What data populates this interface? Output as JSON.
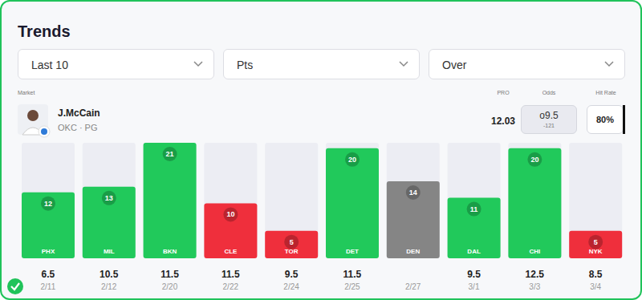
{
  "header": {
    "title": "Trends"
  },
  "filters": [
    "Last 10",
    "Pts",
    "Over"
  ],
  "columns": {
    "market": "Market",
    "pro": "PRO",
    "odds": "Odds",
    "hit_rate": "Hit Rate"
  },
  "player": {
    "name": "J.McCain",
    "subtitle": "OKC · PG",
    "pro": 12.03,
    "odds_line": "o9.5",
    "odds_price": -121,
    "hit_rate": "80%"
  },
  "chart_data": {
    "type": "bar",
    "categories": [
      "PHX",
      "MIL",
      "BKN",
      "CLE",
      "TOR",
      "DET",
      "DEN",
      "DAL",
      "CHI",
      "NYK"
    ],
    "values": [
      12,
      13,
      21,
      10,
      5,
      20,
      14,
      11,
      20,
      5
    ],
    "colors": [
      "#21c95b",
      "#21c95b",
      "#21c95b",
      "#ef2f3c",
      "#ef2f3c",
      "#21c95b",
      "#858585",
      "#21c95b",
      "#21c95b",
      "#ef2f3c"
    ],
    "prop_lines": [
      6.5,
      10.5,
      11.5,
      11.5,
      9.5,
      11.5,
      null,
      9.5,
      12.5,
      8.5
    ],
    "dates": [
      "2/11",
      "2/12",
      "2/20",
      "2/22",
      "2/24",
      "2/25",
      "2/27",
      "3/1",
      "3/3",
      "3/4"
    ],
    "ylim": [
      0,
      21
    ],
    "data_labels": true,
    "tick_labels": false,
    "grid": false
  }
}
